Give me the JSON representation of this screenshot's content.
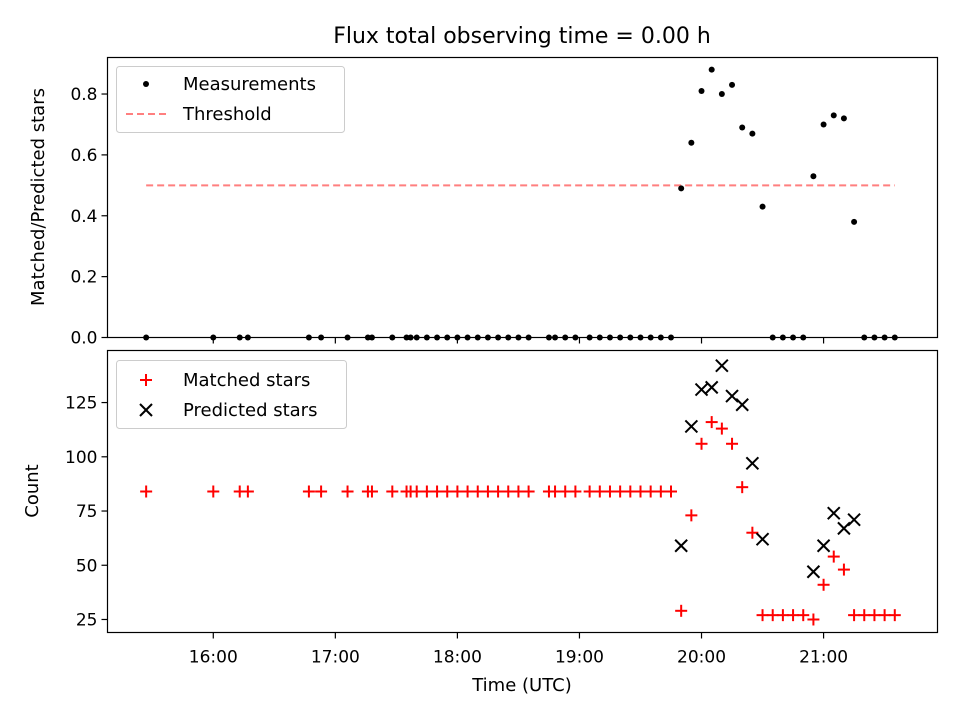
{
  "chart_data": [
    {
      "type": "scatter",
      "title": "Flux total observing time = 0.00 h",
      "ylabel": "Matched/Predicted stars",
      "xlim": [
        "15:08",
        "21:56"
      ],
      "ylim": [
        0,
        0.92
      ],
      "yticks": [
        0,
        0.2,
        0.4,
        0.6,
        0.8
      ],
      "ytick_labels": [
        "0.0",
        "0.2",
        "0.4",
        "0.6",
        "0.8"
      ],
      "legend_position": "top-left",
      "series": [
        {
          "name": "Measurements",
          "marker": "dot",
          "color": "#000000",
          "points": [
            [
              "15:27",
              0
            ],
            [
              "16:00",
              0
            ],
            [
              "16:13",
              0
            ],
            [
              "16:17",
              0
            ],
            [
              "16:47",
              0
            ],
            [
              "16:53",
              0
            ],
            [
              "17:06",
              0
            ],
            [
              "17:16",
              0
            ],
            [
              "17:18",
              0
            ],
            [
              "17:28",
              0
            ],
            [
              "17:35",
              0
            ],
            [
              "17:37",
              0
            ],
            [
              "17:40",
              0
            ],
            [
              "17:45",
              0
            ],
            [
              "17:50",
              0
            ],
            [
              "17:55",
              0
            ],
            [
              "18:00",
              0
            ],
            [
              "18:05",
              0
            ],
            [
              "18:10",
              0
            ],
            [
              "18:15",
              0
            ],
            [
              "18:20",
              0
            ],
            [
              "18:25",
              0
            ],
            [
              "18:30",
              0
            ],
            [
              "18:35",
              0
            ],
            [
              "18:45",
              0
            ],
            [
              "18:48",
              0
            ],
            [
              "18:53",
              0
            ],
            [
              "18:58",
              0
            ],
            [
              "19:05",
              0
            ],
            [
              "19:10",
              0
            ],
            [
              "19:15",
              0
            ],
            [
              "19:20",
              0
            ],
            [
              "19:25",
              0
            ],
            [
              "19:30",
              0
            ],
            [
              "19:35",
              0
            ],
            [
              "19:40",
              0
            ],
            [
              "19:45",
              0
            ],
            [
              "19:50",
              0.49
            ],
            [
              "19:55",
              0.64
            ],
            [
              "20:00",
              0.81
            ],
            [
              "20:05",
              0.88
            ],
            [
              "20:10",
              0.8
            ],
            [
              "20:15",
              0.83
            ],
            [
              "20:20",
              0.69
            ],
            [
              "20:25",
              0.67
            ],
            [
              "20:30",
              0.43
            ],
            [
              "20:35",
              0
            ],
            [
              "20:40",
              0
            ],
            [
              "20:45",
              0
            ],
            [
              "20:50",
              0
            ],
            [
              "20:55",
              0.53
            ],
            [
              "21:00",
              0.7
            ],
            [
              "21:05",
              0.73
            ],
            [
              "21:10",
              0.72
            ],
            [
              "21:15",
              0.38
            ],
            [
              "21:20",
              0
            ],
            [
              "21:25",
              0
            ],
            [
              "21:30",
              0
            ],
            [
              "21:35",
              0
            ]
          ]
        },
        {
          "name": "Threshold",
          "marker": "dashed-line",
          "color": "#ff7f7f",
          "points": [
            [
              "15:27",
              0.5
            ],
            [
              "21:35",
              0.5
            ]
          ]
        }
      ]
    },
    {
      "type": "scatter",
      "xlabel": "Time (UTC)",
      "ylabel": "Count",
      "xlim": [
        "15:08",
        "21:56"
      ],
      "ylim": [
        19,
        149
      ],
      "xticks": [
        "16:00",
        "17:00",
        "18:00",
        "19:00",
        "20:00",
        "21:00"
      ],
      "yticks": [
        25,
        50,
        75,
        100,
        125
      ],
      "ytick_labels": [
        "25",
        "50",
        "75",
        "100",
        "125"
      ],
      "legend_position": "top-left",
      "series": [
        {
          "name": "Matched stars",
          "marker": "plus",
          "color": "#ff0000",
          "points": [
            [
              "15:27",
              84
            ],
            [
              "16:00",
              84
            ],
            [
              "16:13",
              84
            ],
            [
              "16:17",
              84
            ],
            [
              "16:47",
              84
            ],
            [
              "16:53",
              84
            ],
            [
              "17:06",
              84
            ],
            [
              "17:16",
              84
            ],
            [
              "17:18",
              84
            ],
            [
              "17:28",
              84
            ],
            [
              "17:35",
              84
            ],
            [
              "17:37",
              84
            ],
            [
              "17:40",
              84
            ],
            [
              "17:45",
              84
            ],
            [
              "17:50",
              84
            ],
            [
              "17:55",
              84
            ],
            [
              "18:00",
              84
            ],
            [
              "18:05",
              84
            ],
            [
              "18:10",
              84
            ],
            [
              "18:15",
              84
            ],
            [
              "18:20",
              84
            ],
            [
              "18:25",
              84
            ],
            [
              "18:30",
              84
            ],
            [
              "18:35",
              84
            ],
            [
              "18:45",
              84
            ],
            [
              "18:48",
              84
            ],
            [
              "18:53",
              84
            ],
            [
              "18:58",
              84
            ],
            [
              "19:05",
              84
            ],
            [
              "19:10",
              84
            ],
            [
              "19:15",
              84
            ],
            [
              "19:20",
              84
            ],
            [
              "19:25",
              84
            ],
            [
              "19:30",
              84
            ],
            [
              "19:35",
              84
            ],
            [
              "19:40",
              84
            ],
            [
              "19:45",
              84
            ],
            [
              "19:50",
              29
            ],
            [
              "19:55",
              73
            ],
            [
              "20:00",
              106
            ],
            [
              "20:05",
              116
            ],
            [
              "20:10",
              113
            ],
            [
              "20:15",
              106
            ],
            [
              "20:20",
              86
            ],
            [
              "20:25",
              65
            ],
            [
              "20:30",
              27
            ],
            [
              "20:35",
              27
            ],
            [
              "20:40",
              27
            ],
            [
              "20:45",
              27
            ],
            [
              "20:50",
              27
            ],
            [
              "20:55",
              25
            ],
            [
              "21:00",
              41
            ],
            [
              "21:05",
              54
            ],
            [
              "21:10",
              48
            ],
            [
              "21:15",
              27
            ],
            [
              "21:20",
              27
            ],
            [
              "21:25",
              27
            ],
            [
              "21:30",
              27
            ],
            [
              "21:35",
              27
            ]
          ]
        },
        {
          "name": "Predicted stars",
          "marker": "x",
          "color": "#000000",
          "points": [
            [
              "19:50",
              59
            ],
            [
              "19:55",
              114
            ],
            [
              "20:00",
              131
            ],
            [
              "20:05",
              132
            ],
            [
              "20:10",
              142
            ],
            [
              "20:15",
              128
            ],
            [
              "20:20",
              124
            ],
            [
              "20:25",
              97
            ],
            [
              "20:30",
              62
            ],
            [
              "20:55",
              47
            ],
            [
              "21:00",
              59
            ],
            [
              "21:05",
              74
            ],
            [
              "21:10",
              67
            ],
            [
              "21:15",
              71
            ]
          ]
        }
      ]
    }
  ]
}
